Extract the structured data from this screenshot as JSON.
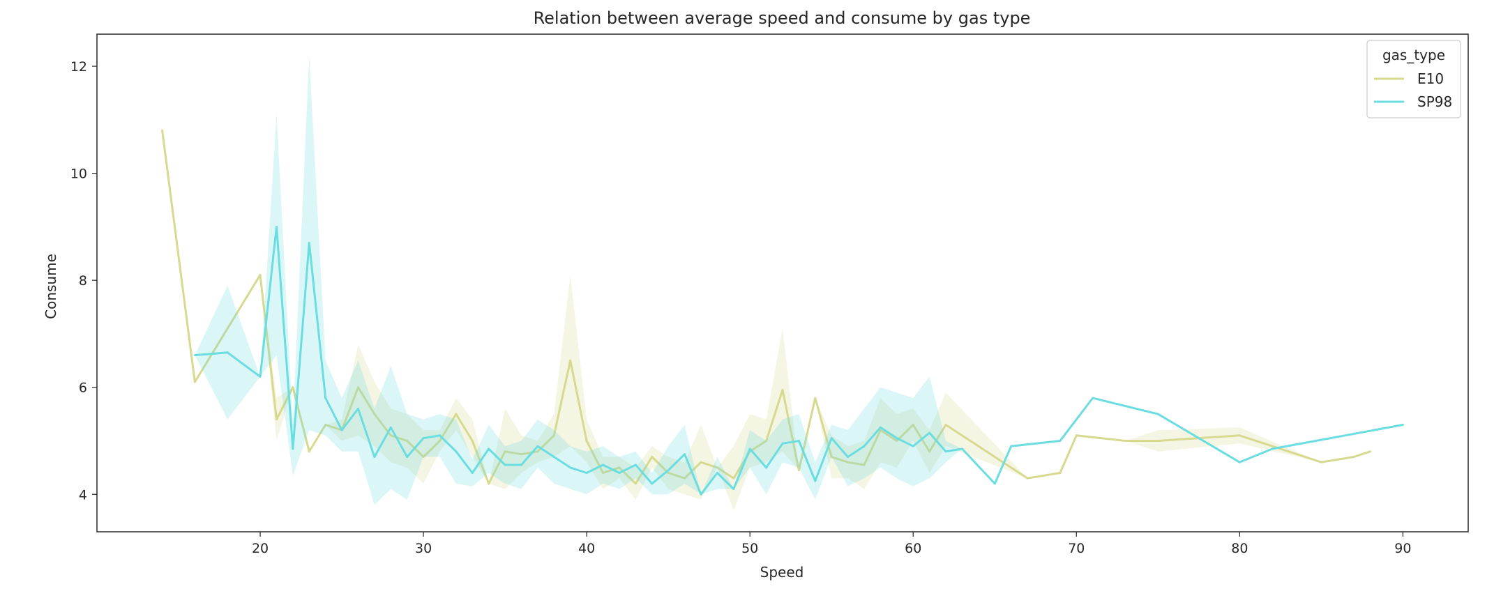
{
  "chart_data": {
    "type": "line",
    "title": "Relation between average speed and consume by gas type",
    "xlabel": "Speed",
    "ylabel": "Consume",
    "xlim": [
      10,
      94
    ],
    "ylim": [
      3.3,
      12.6
    ],
    "xticks": [
      20,
      30,
      40,
      50,
      60,
      70,
      80,
      90
    ],
    "yticks": [
      4,
      6,
      8,
      10,
      12
    ],
    "legend": {
      "title": "gas_type",
      "position": "top-right"
    },
    "series": [
      {
        "name": "E10",
        "color": "#d6d98e",
        "x": [
          14,
          16,
          20,
          21,
          22,
          23,
          24,
          25,
          26,
          27,
          28,
          29,
          30,
          31,
          32,
          33,
          34,
          35,
          36,
          37,
          38,
          39,
          40,
          41,
          42,
          43,
          44,
          45,
          46,
          47,
          48,
          49,
          50,
          51,
          52,
          53,
          54,
          55,
          56,
          57,
          58,
          59,
          60,
          61,
          62,
          67,
          69,
          70,
          73,
          75,
          80,
          85,
          87,
          88
        ],
        "y": [
          10.8,
          6.1,
          8.1,
          5.4,
          6.0,
          4.8,
          5.3,
          5.2,
          6.0,
          5.5,
          5.1,
          5.0,
          4.7,
          5.0,
          5.5,
          5.0,
          4.2,
          4.8,
          4.75,
          4.8,
          5.1,
          6.5,
          5.0,
          4.4,
          4.5,
          4.2,
          4.7,
          4.4,
          4.3,
          4.6,
          4.5,
          4.3,
          4.8,
          5.0,
          5.95,
          4.45,
          5.8,
          4.7,
          4.6,
          4.55,
          5.2,
          5.0,
          5.3,
          4.8,
          5.3,
          4.3,
          4.4,
          5.1,
          5.0,
          5.0,
          5.1,
          4.6,
          4.7,
          4.8
        ],
        "ci_low": [
          10.8,
          6.1,
          8.1,
          5.0,
          6.0,
          4.8,
          5.3,
          5.0,
          5.1,
          4.9,
          4.6,
          4.5,
          4.2,
          4.8,
          5.2,
          4.7,
          4.2,
          4.1,
          4.4,
          4.6,
          4.7,
          4.9,
          4.6,
          4.1,
          4.3,
          3.9,
          4.5,
          4.1,
          4.0,
          3.9,
          4.5,
          3.7,
          4.5,
          4.6,
          4.8,
          4.45,
          5.8,
          4.3,
          4.3,
          4.1,
          4.6,
          4.5,
          5.0,
          4.4,
          4.9,
          4.3,
          4.4,
          5.1,
          5.0,
          4.8,
          4.95,
          4.6,
          4.7,
          4.8
        ],
        "ci_high": [
          10.8,
          6.1,
          8.1,
          5.8,
          6.0,
          4.8,
          5.3,
          5.4,
          6.8,
          6.1,
          5.6,
          5.5,
          5.2,
          5.2,
          5.8,
          5.4,
          4.2,
          5.6,
          5.1,
          5.0,
          5.5,
          8.1,
          5.4,
          4.7,
          4.7,
          4.5,
          4.9,
          4.7,
          4.6,
          5.3,
          4.5,
          4.9,
          5.5,
          5.4,
          7.1,
          4.45,
          5.8,
          5.1,
          4.9,
          5.0,
          5.8,
          5.5,
          5.6,
          5.2,
          5.9,
          4.3,
          4.4,
          5.1,
          5.0,
          5.2,
          5.25,
          4.6,
          4.7,
          4.8
        ]
      },
      {
        "name": "SP98",
        "color": "#6bdde0",
        "x": [
          16,
          18,
          20,
          21,
          22,
          23,
          24,
          25,
          26,
          27,
          28,
          29,
          30,
          31,
          32,
          33,
          34,
          35,
          36,
          37,
          38,
          39,
          40,
          41,
          42,
          43,
          44,
          45,
          46,
          47,
          48,
          49,
          50,
          51,
          52,
          53,
          54,
          55,
          56,
          57,
          58,
          59,
          60,
          61,
          62,
          63,
          65,
          66,
          69,
          71,
          75,
          80,
          82,
          90
        ],
        "y": [
          6.6,
          6.65,
          6.2,
          9.0,
          4.85,
          8.7,
          5.8,
          5.2,
          5.6,
          4.7,
          5.25,
          4.7,
          5.05,
          5.1,
          4.8,
          4.4,
          4.85,
          4.55,
          4.55,
          4.9,
          4.7,
          4.5,
          4.4,
          4.55,
          4.4,
          4.55,
          4.2,
          4.45,
          4.75,
          4.0,
          4.4,
          4.1,
          4.85,
          4.5,
          4.95,
          5.0,
          4.25,
          5.05,
          4.7,
          4.9,
          5.25,
          5.05,
          4.9,
          5.15,
          4.8,
          4.85,
          4.2,
          4.9,
          5.0,
          5.8,
          5.5,
          4.6,
          4.85,
          5.3
        ],
        "ci_low": [
          6.6,
          5.4,
          6.2,
          6.6,
          4.35,
          5.2,
          5.1,
          4.8,
          4.8,
          3.8,
          4.1,
          3.9,
          4.7,
          4.7,
          4.2,
          4.15,
          4.4,
          4.2,
          4.1,
          4.5,
          4.2,
          4.1,
          4.0,
          4.2,
          4.1,
          4.3,
          4.0,
          4.0,
          4.2,
          4.0,
          4.1,
          4.1,
          4.5,
          4.0,
          4.6,
          4.5,
          3.9,
          4.7,
          4.15,
          4.3,
          4.5,
          4.3,
          4.15,
          4.3,
          4.6,
          4.85,
          4.2,
          4.9,
          5.0,
          5.8,
          5.5,
          4.6,
          4.85,
          5.3
        ],
        "ci_high": [
          6.6,
          7.9,
          6.2,
          11.1,
          5.35,
          12.2,
          6.5,
          5.8,
          6.5,
          5.6,
          6.4,
          5.5,
          5.4,
          5.5,
          5.4,
          4.65,
          5.3,
          4.9,
          5.0,
          5.4,
          5.2,
          4.9,
          4.8,
          4.9,
          4.7,
          4.8,
          4.4,
          4.9,
          5.3,
          4.0,
          4.7,
          4.1,
          5.2,
          5.0,
          5.4,
          5.5,
          4.6,
          5.3,
          5.2,
          5.6,
          6.0,
          5.9,
          5.8,
          6.2,
          5.0,
          4.85,
          4.2,
          4.9,
          5.0,
          5.8,
          5.5,
          4.6,
          4.85,
          5.3
        ]
      }
    ]
  }
}
